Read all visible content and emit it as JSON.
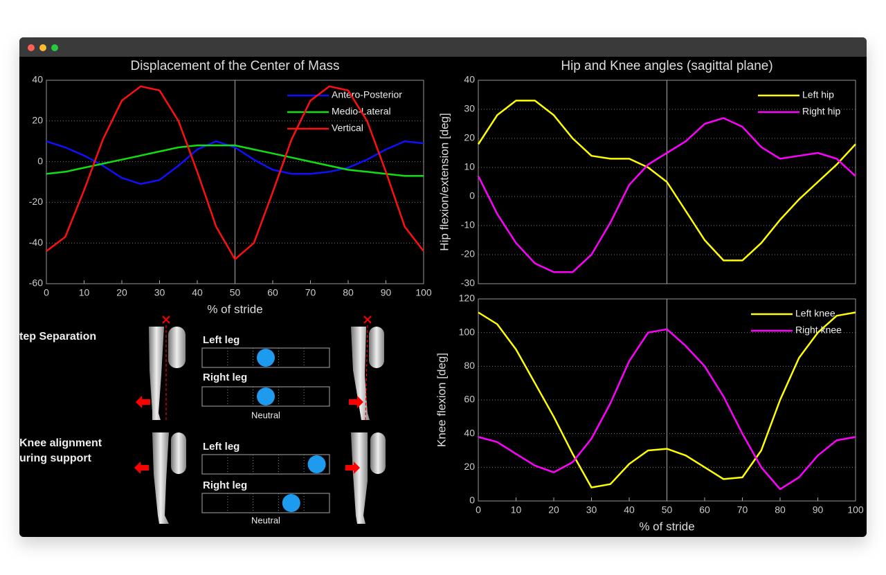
{
  "chart_data": [
    {
      "type": "line",
      "title": "Displacement of the Center of Mass",
      "xlabel": "% of stride",
      "x": [
        0,
        5,
        10,
        15,
        20,
        25,
        30,
        35,
        40,
        45,
        50,
        55,
        60,
        65,
        70,
        75,
        80,
        85,
        90,
        95,
        100
      ],
      "xlim": [
        0,
        100
      ],
      "xticks": [
        0,
        10,
        20,
        30,
        40,
        50,
        60,
        70,
        80,
        90,
        100
      ],
      "ylim": [
        -60,
        40
      ],
      "yticks": [
        -60,
        -40,
        -20,
        0,
        20,
        40
      ],
      "grid": true,
      "marker_x": 50,
      "series": [
        {
          "name": "Antero-Posterior",
          "color": "#1010ff",
          "values": [
            10,
            7,
            3,
            -2,
            -8,
            -11,
            -9,
            -2,
            6,
            10,
            7,
            1,
            -4,
            -6,
            -6,
            -5,
            -3,
            1,
            6,
            10,
            9
          ]
        },
        {
          "name": "Medio-Lateral",
          "color": "#10e010",
          "values": [
            -6,
            -5,
            -3,
            -1,
            1,
            3,
            5,
            7,
            8,
            8,
            8,
            6,
            4,
            2,
            0,
            -2,
            -4,
            -5,
            -6,
            -7,
            -7
          ]
        },
        {
          "name": "Vertical",
          "color": "#ff1010",
          "values": [
            -44,
            -37,
            -14,
            11,
            30,
            37,
            35,
            20,
            -5,
            -32,
            -48,
            -40,
            -15,
            11,
            30,
            37,
            35,
            20,
            -5,
            -32,
            -44
          ]
        }
      ]
    },
    {
      "type": "line",
      "title": "Hip and Knee angles (sagittal plane)",
      "ylabel": "Hip flexion/extension [deg]",
      "x": [
        0,
        5,
        10,
        15,
        20,
        25,
        30,
        35,
        40,
        45,
        50,
        55,
        60,
        65,
        70,
        75,
        80,
        85,
        90,
        95,
        100
      ],
      "xlim": [
        0,
        100
      ],
      "ylim": [
        -30,
        40
      ],
      "yticks": [
        -30,
        -20,
        -10,
        0,
        10,
        20,
        30,
        40
      ],
      "grid": true,
      "marker_x": 50,
      "series": [
        {
          "name": "Left hip",
          "color": "#ffff00",
          "values": [
            18,
            28,
            33,
            33,
            28,
            20,
            14,
            13,
            13,
            10,
            5,
            -5,
            -15,
            -22,
            -22,
            -16,
            -8,
            -1,
            5,
            11,
            18
          ]
        },
        {
          "name": "Right hip",
          "color": "#ff00ff",
          "values": [
            7,
            -6,
            -16,
            -23,
            -26,
            -26,
            -20,
            -9,
            4,
            11,
            15,
            19,
            25,
            27,
            24,
            17,
            13,
            14,
            15,
            13,
            7
          ]
        }
      ]
    },
    {
      "type": "line",
      "xlabel": "% of stride",
      "ylabel": "Knee flexion [deg]",
      "x": [
        0,
        5,
        10,
        15,
        20,
        25,
        30,
        35,
        40,
        45,
        50,
        55,
        60,
        65,
        70,
        75,
        80,
        85,
        90,
        95,
        100
      ],
      "xlim": [
        0,
        100
      ],
      "xticks": [
        0,
        10,
        20,
        30,
        40,
        50,
        60,
        70,
        80,
        90,
        100
      ],
      "ylim": [
        0,
        120
      ],
      "yticks": [
        0,
        20,
        40,
        60,
        80,
        100,
        120
      ],
      "grid": true,
      "marker_x": 50,
      "series": [
        {
          "name": "Left knee",
          "color": "#ffff00",
          "values": [
            112,
            105,
            90,
            70,
            50,
            28,
            8,
            10,
            22,
            30,
            31,
            27,
            20,
            13,
            14,
            30,
            60,
            85,
            100,
            110,
            112
          ]
        },
        {
          "name": "Right knee",
          "color": "#ff00ff",
          "values": [
            38,
            35,
            28,
            21,
            17,
            23,
            37,
            58,
            83,
            100,
            102,
            92,
            80,
            62,
            40,
            20,
            7,
            14,
            27,
            36,
            38
          ]
        }
      ]
    }
  ],
  "panels": [
    {
      "title": [
        "tep Separation"
      ],
      "scale_label": "Neutral",
      "range": [
        -2.5,
        2.5
      ],
      "legs": [
        {
          "label": "Left leg",
          "value": 0
        },
        {
          "label": "Right leg",
          "value": 0
        }
      ]
    },
    {
      "title": [
        "Knee alignment",
        "uring support"
      ],
      "scale_label": "Neutral",
      "range": [
        -2.5,
        2.5
      ],
      "legs": [
        {
          "label": "Left leg",
          "value": 2
        },
        {
          "label": "Right leg",
          "value": 1
        }
      ]
    }
  ]
}
